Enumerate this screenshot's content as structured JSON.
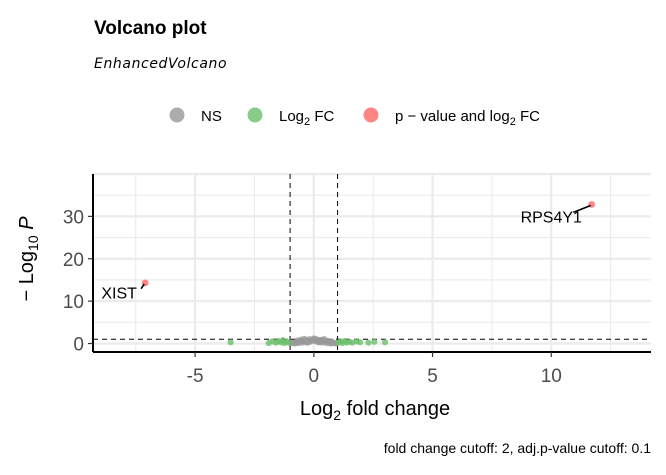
{
  "chart_data": {
    "type": "scatter",
    "title": "Volcano plot",
    "subtitle": "EnhancedVolcano",
    "caption": "fold change cutoff: 2, adj.p-value cutoff: 0.1",
    "xlabel": {
      "base": "Log",
      "sub": "2",
      "rest": " fold change"
    },
    "ylabel": {
      "prefix": "− Log",
      "sub": "10",
      "italic": "P"
    },
    "xlim": [
      -9.3,
      14.2
    ],
    "ylim": [
      -2,
      40
    ],
    "xticks": [
      -5,
      0,
      5,
      10
    ],
    "yticks": [
      0,
      10,
      20,
      30
    ],
    "grid": true,
    "legend_position": "top",
    "cutoffs": {
      "fc_lines": [
        -1,
        1
      ],
      "p_line": 1
    },
    "legend": [
      {
        "key": "ns",
        "color": "#999999",
        "pre": "NS",
        "sub": "",
        "post": ""
      },
      {
        "key": "fc",
        "color": "#6bbf6b",
        "pre": "Log",
        "sub": "2",
        "post": " FC"
      },
      {
        "key": "pfc",
        "color": "#ff6666",
        "pre": "p − value and log",
        "sub": "2",
        "post": " FC"
      }
    ],
    "series": [
      {
        "name": "NS",
        "color": "#999999",
        "x": [
          -0.95,
          -0.88,
          -0.8,
          -0.73,
          -0.65,
          -0.58,
          -0.5,
          -0.43,
          -0.36,
          -0.3,
          -0.24,
          -0.18,
          -0.12,
          -0.06,
          0.0,
          0.06,
          0.12,
          0.18,
          0.24,
          0.3,
          0.36,
          0.43,
          0.5,
          0.58,
          0.65,
          0.73,
          0.8,
          0.88,
          0.95,
          -0.7,
          -0.4,
          -0.15,
          0.1,
          0.35,
          0.6,
          -0.55,
          0.2,
          0.45,
          -0.25,
          0.75
        ],
        "y": [
          0.1,
          0.2,
          0.0,
          0.3,
          0.1,
          0.4,
          0.2,
          0.6,
          0.3,
          0.8,
          0.4,
          1.0,
          0.5,
          0.9,
          1.2,
          0.7,
          1.0,
          0.4,
          0.8,
          0.3,
          0.6,
          0.2,
          0.5,
          0.1,
          0.3,
          0.0,
          0.2,
          0.1,
          0.0,
          0.7,
          1.1,
          0.6,
          0.5,
          0.9,
          0.6,
          0.9,
          0.3,
          1.0,
          0.2,
          0.5
        ]
      },
      {
        "name": "Log2 FC",
        "color": "#6bbf6b",
        "x": [
          -3.5,
          -1.9,
          -1.75,
          -1.6,
          -1.5,
          -1.4,
          -1.3,
          -1.25,
          -1.15,
          -1.08,
          1.05,
          1.12,
          1.2,
          1.3,
          1.38,
          1.5,
          1.62,
          1.8,
          1.95,
          2.3,
          2.55,
          3.0
        ],
        "y": [
          0.3,
          0.1,
          0.5,
          0.2,
          0.6,
          0.3,
          0.8,
          0.1,
          0.5,
          0.2,
          0.3,
          0.5,
          0.1,
          0.6,
          0.2,
          0.4,
          0.2,
          0.5,
          0.3,
          0.2,
          0.4,
          0.3
        ]
      },
      {
        "name": "p - value and log2 FC",
        "color": "#ff6666",
        "x": [
          -7.1,
          11.7
        ],
        "y": [
          14.3,
          32.8
        ]
      }
    ],
    "annotations": [
      {
        "text": "XIST",
        "x": -7.1,
        "y": 14.3,
        "label_x": -8.2,
        "label_y": 12.0
      },
      {
        "text": "RPS4Y1",
        "x": 11.7,
        "y": 32.8,
        "label_x": 10.0,
        "label_y": 30.0
      }
    ]
  }
}
